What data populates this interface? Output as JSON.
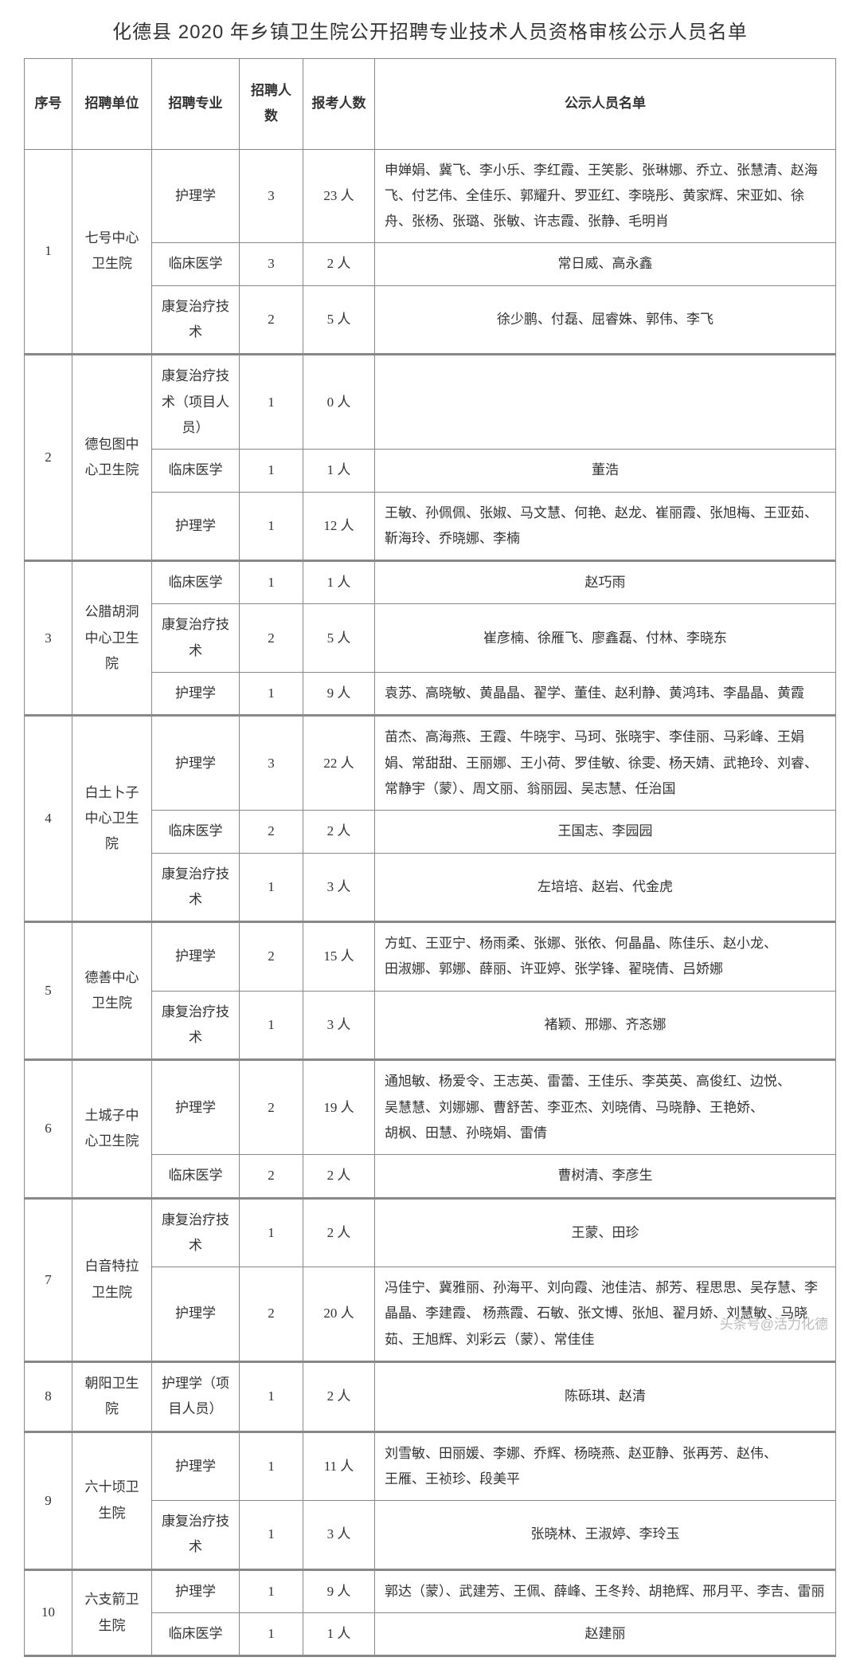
{
  "title": "化德县 2020 年乡镇卫生院公开招聘专业技术人员资格审核公示人员名单",
  "headers": {
    "seq": "序号",
    "unit": "招聘单位",
    "major": "招聘专业",
    "hire": "招聘人数",
    "apply": "报考人数",
    "list": "公示人员名单"
  },
  "groups": [
    {
      "seq": "1",
      "unit": "七号中心卫生院",
      "rows": [
        {
          "major": "护理学",
          "hire": "3",
          "apply": "23 人",
          "names": "申婵娟、冀飞、李小乐、李红霞、王笑影、张琳娜、乔立、张慧清、赵海飞、付艺伟、全佳乐、郭耀升、罗亚红、李晓彤、黄家辉、宋亚如、徐舟、张杨、张璐、张敏、许志霞、张静、毛明肖",
          "align": "left"
        },
        {
          "major": "临床医学",
          "hire": "3",
          "apply": "2 人",
          "names": "常日威、高永鑫",
          "align": "center"
        },
        {
          "major": "康复治疗技术",
          "hire": "2",
          "apply": "5 人",
          "names": "徐少鹏、付磊、屈睿姝、郭伟、李飞",
          "align": "center"
        }
      ]
    },
    {
      "seq": "2",
      "unit": "德包图中心卫生院",
      "rows": [
        {
          "major": "康复治疗技术（项目人员）",
          "hire": "1",
          "apply": "0 人",
          "names": "",
          "align": "center"
        },
        {
          "major": "临床医学",
          "hire": "1",
          "apply": "1 人",
          "names": "董浩",
          "align": "center"
        },
        {
          "major": "护理学",
          "hire": "1",
          "apply": "12 人",
          "names": "王敏、孙佩佩、张婌、马文慧、何艳、赵龙、崔丽霞、张旭梅、王亚茹、靳海玲、乔晓娜、李楠",
          "align": "left"
        }
      ]
    },
    {
      "seq": "3",
      "unit": "公腊胡洞中心卫生院",
      "rows": [
        {
          "major": "临床医学",
          "hire": "1",
          "apply": "1 人",
          "names": "赵巧雨",
          "align": "center"
        },
        {
          "major": "康复治疗技术",
          "hire": "2",
          "apply": "5 人",
          "names": "崔彦楠、徐雁飞、廖鑫磊、付林、李晓东",
          "align": "center"
        },
        {
          "major": "护理学",
          "hire": "1",
          "apply": "9 人",
          "names": "袁苏、高晓敏、黄晶晶、翟学、董佳、赵利静、黄鸿玮、李晶晶、黄霞",
          "align": "left"
        }
      ]
    },
    {
      "seq": "4",
      "unit": "白土卜子中心卫生院",
      "rows": [
        {
          "major": "护理学",
          "hire": "3",
          "apply": "22 人",
          "names": "苗杰、高海燕、王霞、牛晓宇、马珂、张晓宇、李佳丽、马彩峰、王娟娟、常甜甜、王丽娜、王小荷、罗佳敏、徐雯、杨天婧、武艳玲、刘睿、常静宇（蒙）、周文丽、翁丽园、吴志慧、任治国",
          "align": "left"
        },
        {
          "major": "临床医学",
          "hire": "2",
          "apply": "2 人",
          "names": "王国志、李园园",
          "align": "center"
        },
        {
          "major": "康复治疗技术",
          "hire": "1",
          "apply": "3 人",
          "names": "左培培、赵岩、代金虎",
          "align": "center"
        }
      ]
    },
    {
      "seq": "5",
      "unit": "德善中心卫生院",
      "rows": [
        {
          "major": "护理学",
          "hire": "2",
          "apply": "15 人",
          "names": "方虹、王亚宁、杨雨柔、张娜、张依、何晶晶、陈佳乐、赵小龙、\n田淑娜、郭娜、薛丽、许亚婷、张学锋、翟晓倩、吕娇娜",
          "align": "left"
        },
        {
          "major": "康复治疗技术",
          "hire": "1",
          "apply": "3 人",
          "names": "褚颖、邢娜、齐忞娜",
          "align": "center"
        }
      ]
    },
    {
      "seq": "6",
      "unit": "土城子中心卫生院",
      "rows": [
        {
          "major": "护理学",
          "hire": "2",
          "apply": "19 人",
          "names": "通旭敏、杨爱令、王志英、雷蕾、王佳乐、李英英、高俊红、边悦、\n吴慧慧、刘娜娜、曹舒苦、李亚杰、刘晓倩、马晓静、王艳娇、\n胡枫、田慧、孙晓娟、雷倩",
          "align": "left"
        },
        {
          "major": "临床医学",
          "hire": "2",
          "apply": "2 人",
          "names": "曹树清、李彦生",
          "align": "center"
        }
      ]
    },
    {
      "seq": "7",
      "unit": "白音特拉卫生院",
      "rows": [
        {
          "major": "康复治疗技术",
          "hire": "1",
          "apply": "2 人",
          "names": "王蒙、田珍",
          "align": "center"
        },
        {
          "major": "护理学",
          "hire": "2",
          "apply": "20 人",
          "names": "冯佳宁、冀雅丽、孙海平、刘向霞、池佳洁、郝芳、程思思、吴存慧、李晶晶、李建霞、 杨燕霞、石敏、张文博、张旭、翟月娇、刘慧敏、马晓茹、王旭辉、刘彩云（蒙）、常佳佳",
          "align": "left"
        }
      ]
    },
    {
      "seq": "8",
      "unit": "朝阳卫生院",
      "rows": [
        {
          "major": "护理学（项目人员）",
          "hire": "1",
          "apply": "2 人",
          "names": "陈砾琪、赵清",
          "align": "center"
        }
      ]
    },
    {
      "seq": "9",
      "unit": "六十顷卫生院",
      "rows": [
        {
          "major": "护理学",
          "hire": "1",
          "apply": "11 人",
          "names": "刘雪敏、田丽媛、李娜、乔辉、杨晓燕、赵亚静、张再芳、赵伟、\n王雁、王祯珍、段美平",
          "align": "left"
        },
        {
          "major": "康复治疗技术",
          "hire": "1",
          "apply": "3 人",
          "names": "张晓林、王淑婷、李玲玉",
          "align": "center"
        }
      ]
    },
    {
      "seq": "10",
      "unit": "六支箭卫生院",
      "rows": [
        {
          "major": "护理学",
          "hire": "1",
          "apply": "9 人",
          "names": "郭达（蒙）、武建芳、王佩、薛峰、王冬羚、胡艳辉、邢月平、李吉、雷丽",
          "align": "left"
        },
        {
          "major": "临床医学",
          "hire": "1",
          "apply": "1 人",
          "names": "赵建丽",
          "align": "center"
        }
      ]
    }
  ],
  "watermark": "头条号@活力化德"
}
